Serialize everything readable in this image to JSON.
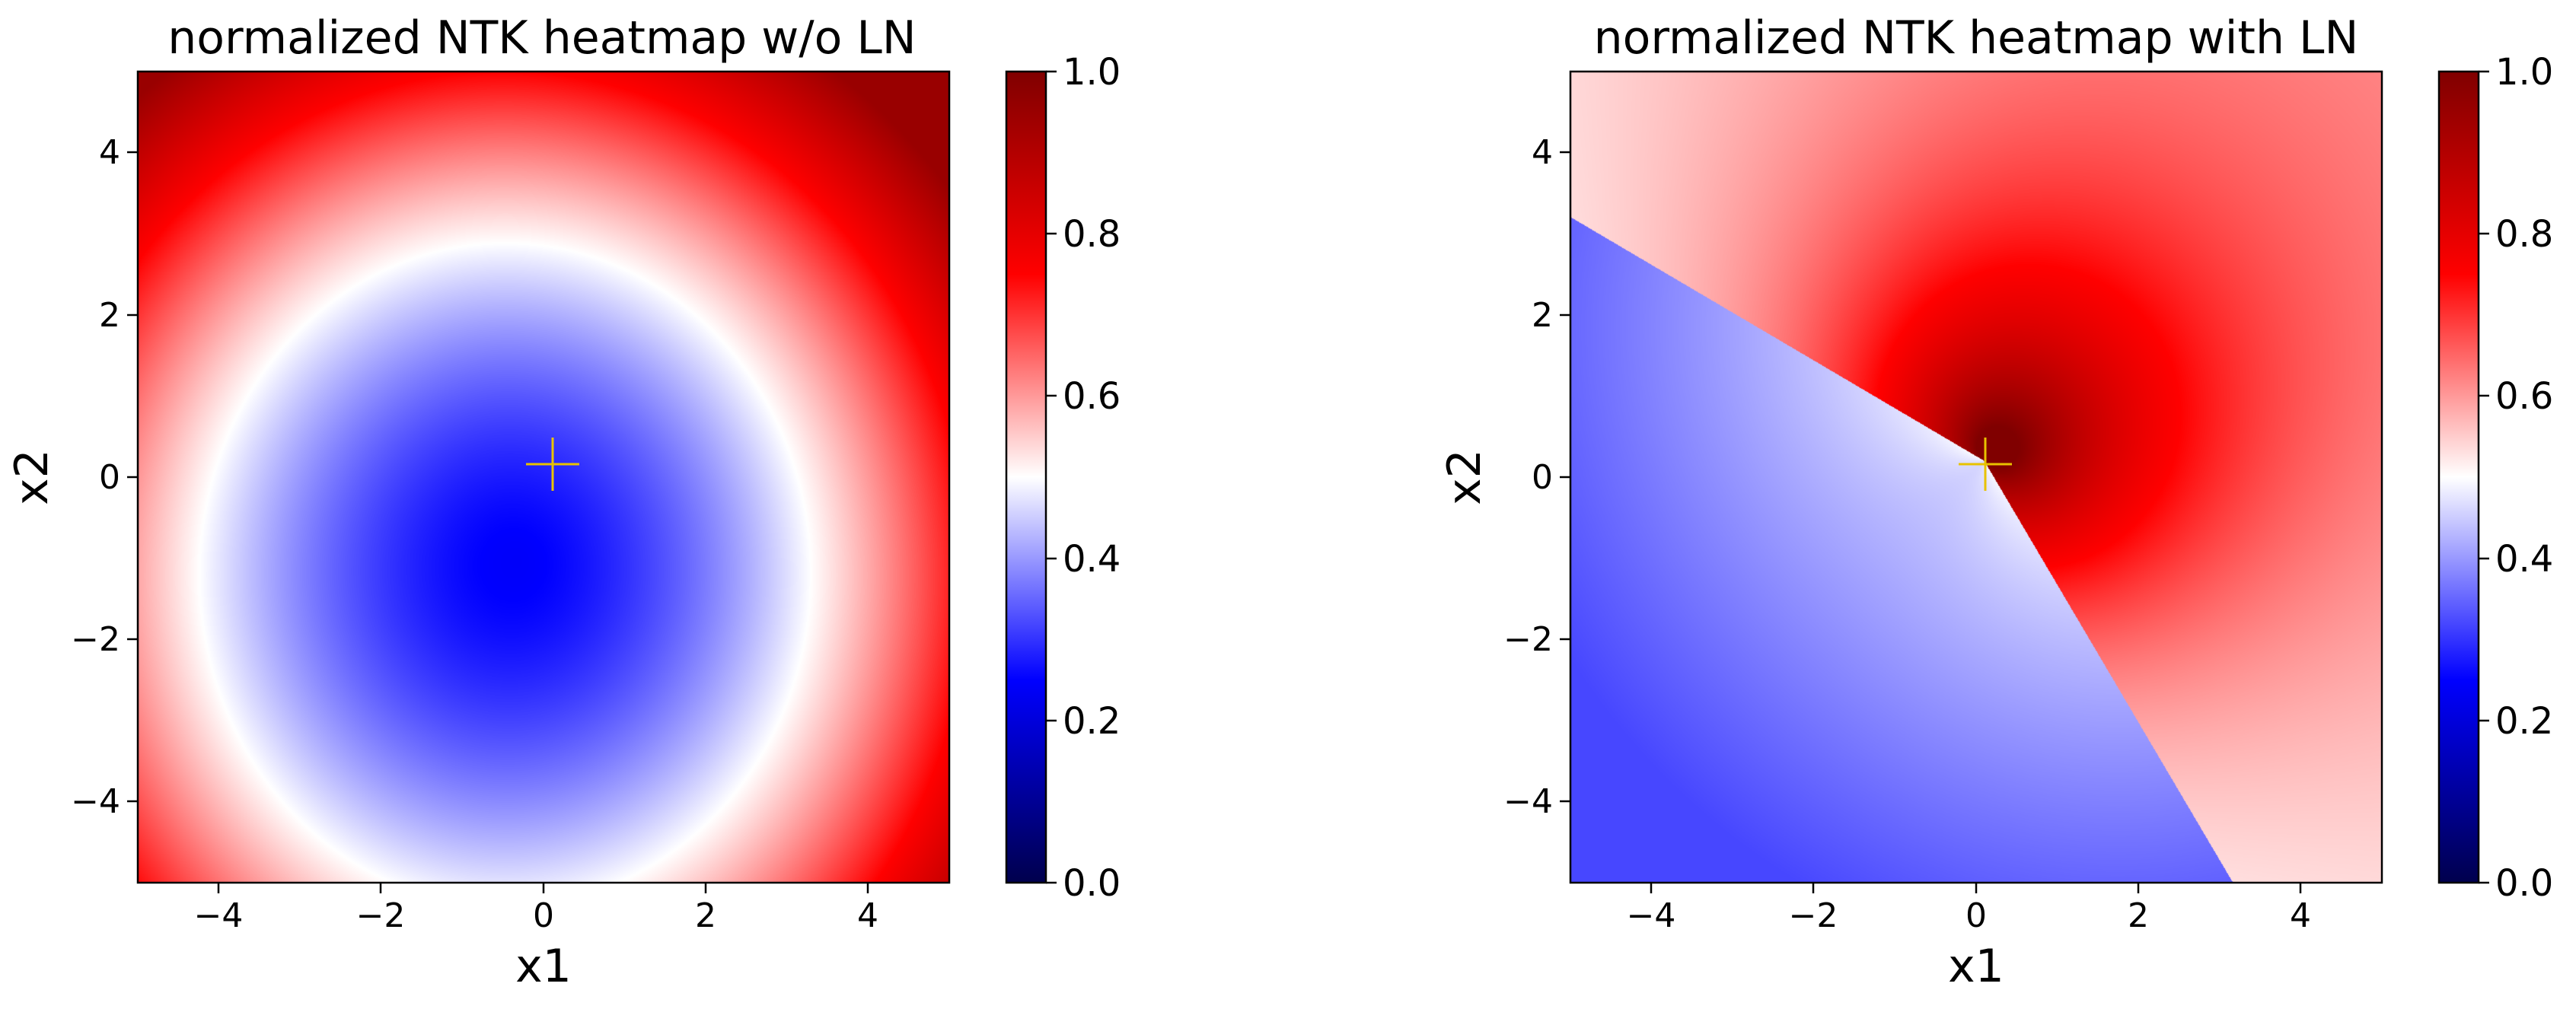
{
  "chart_data": [
    {
      "type": "heatmap",
      "title": "normalized NTK heatmap w/o LN",
      "xlabel": "x1",
      "ylabel": "x2",
      "xlim": [
        -5,
        5
      ],
      "ylim": [
        -5,
        5
      ],
      "x_ticks": [
        -4,
        -2,
        0,
        2,
        4
      ],
      "y_ticks": [
        -4,
        -2,
        0,
        2,
        4
      ],
      "x_tick_labels": [
        "−4",
        "−2",
        "0",
        "2",
        "4"
      ],
      "y_tick_labels": [
        "−4",
        "−2",
        "0",
        "2",
        "4"
      ],
      "colormap": "seismic",
      "colorbar": {
        "range": [
          0.0,
          1.0
        ],
        "ticks": [
          0.0,
          0.2,
          0.4,
          0.6,
          0.8,
          1.0
        ],
        "tick_labels": [
          "0.0",
          "0.2",
          "0.4",
          "0.6",
          "0.8",
          "1.0"
        ]
      },
      "marker": {
        "shape": "plus",
        "x": 0.1,
        "y": 0.2,
        "color": "#e8c200"
      },
      "field_description": {
        "min_value": 0.25,
        "min_at": [
          -0.3,
          -1.0
        ],
        "max_value": 0.95,
        "max_at": [
          5,
          5
        ],
        "contour_0_5_radius_approx": 3.7
      },
      "grid": false
    },
    {
      "type": "heatmap",
      "title": "normalized NTK heatmap with LN",
      "xlabel": "x1",
      "ylabel": "x2",
      "xlim": [
        -5,
        5
      ],
      "ylim": [
        -5,
        5
      ],
      "x_ticks": [
        -4,
        -2,
        0,
        2,
        4
      ],
      "y_ticks": [
        -4,
        -2,
        0,
        2,
        4
      ],
      "x_tick_labels": [
        "−4",
        "−2",
        "0",
        "2",
        "4"
      ],
      "y_tick_labels": [
        "−4",
        "−2",
        "0",
        "2",
        "4"
      ],
      "colormap": "seismic",
      "colorbar": {
        "range": [
          0.0,
          1.0
        ],
        "ticks": [
          0.0,
          0.2,
          0.4,
          0.6,
          0.8,
          1.0
        ],
        "tick_labels": [
          "0.0",
          "0.2",
          "0.4",
          "0.6",
          "0.8",
          "1.0"
        ]
      },
      "marker": {
        "shape": "plus",
        "x": 0.1,
        "y": 0.2,
        "color": "#e8c200"
      },
      "field_description": {
        "max_value": 1.0,
        "max_at": [
          0.1,
          0.2
        ],
        "min_value": 0.32,
        "min_at": [
          -5,
          -5
        ]
      },
      "grid": false
    }
  ]
}
